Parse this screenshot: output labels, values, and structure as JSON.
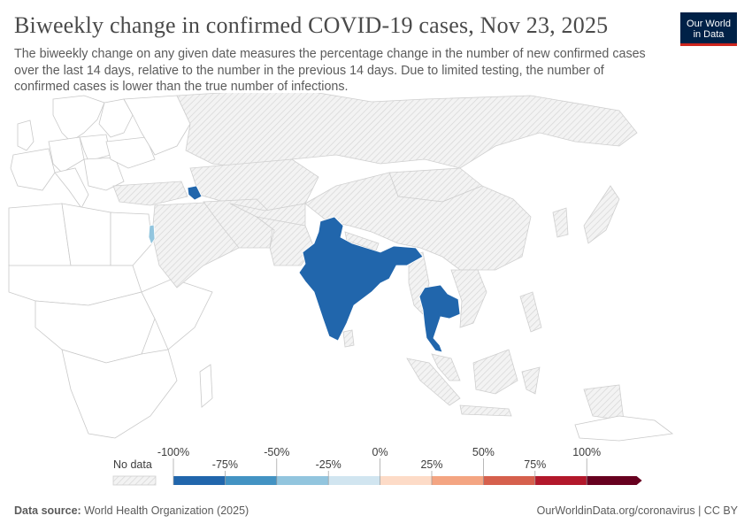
{
  "header": {
    "title": "Biweekly change in confirmed COVID-19 cases, Nov 23, 2025",
    "subtitle": "The biweekly change on any given date measures the percentage change in the number of new confirmed cases over the last 14 days, relative to the number in the previous 14 days. Due to limited testing, the number of confirmed cases is lower than the true number of infections."
  },
  "logo": {
    "line1": "Our World",
    "line2": "in Data"
  },
  "legend": {
    "no_data_label": "No data",
    "upper_ticks": [
      "-100%",
      "-50%",
      "0%",
      "50%",
      "100%"
    ],
    "lower_ticks": [
      "-75%",
      "-25%",
      "25%",
      "75%"
    ],
    "bins": [
      {
        "from": -100,
        "to": -75,
        "color": "#2166ac"
      },
      {
        "from": -75,
        "to": -50,
        "color": "#4393c3"
      },
      {
        "from": -50,
        "to": -25,
        "color": "#92c5de"
      },
      {
        "from": -25,
        "to": 0,
        "color": "#d1e5f0"
      },
      {
        "from": 0,
        "to": 25,
        "color": "#fddbc7"
      },
      {
        "from": 25,
        "to": 50,
        "color": "#f4a582"
      },
      {
        "from": 50,
        "to": 75,
        "color": "#d6604d"
      },
      {
        "from": 75,
        "to": 100,
        "color": "#b2182b"
      },
      {
        "from": 100,
        "to": 125,
        "color": "#67001f"
      }
    ]
  },
  "map_data": {
    "highlighted": [
      {
        "country": "India",
        "bin": "-100% to -75%"
      },
      {
        "country": "Thailand",
        "bin": "-100% to -75%"
      },
      {
        "country": "Armenia",
        "bin": "-100% to -75%"
      },
      {
        "country": "Israel",
        "bin": "-50% to -25%"
      }
    ],
    "no_data_color": "#ebebeb"
  },
  "footer": {
    "source_label": "Data source:",
    "source_value": "World Health Organization (2025)",
    "credit": "OurWorldinData.org/coronavirus | CC BY"
  }
}
